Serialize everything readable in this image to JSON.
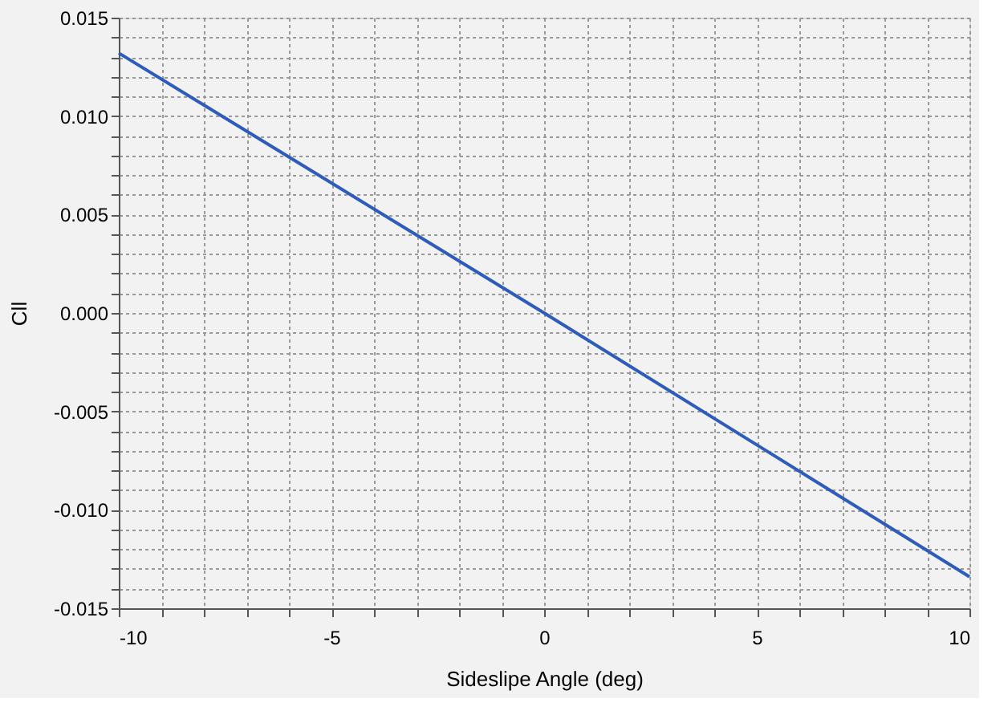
{
  "chart_data": {
    "type": "line",
    "xlabel": "Sideslipe Angle (deg)",
    "ylabel": "Cll",
    "x": [
      -10,
      -5,
      0,
      5,
      10
    ],
    "series": [
      {
        "color": "#2e5cb8",
        "values": [
          0.0132,
          0.0066,
          0.0,
          -0.0067,
          -0.0134
        ]
      }
    ],
    "xlim": [
      -10,
      10
    ],
    "ylim": [
      -0.015,
      0.015
    ],
    "xticks": [
      {
        "value": -10,
        "label": "-10"
      },
      {
        "value": -9,
        "label": null
      },
      {
        "value": -8,
        "label": null
      },
      {
        "value": -7,
        "label": null
      },
      {
        "value": -6,
        "label": null
      },
      {
        "value": -5,
        "label": "-5"
      },
      {
        "value": -4,
        "label": null
      },
      {
        "value": -3,
        "label": null
      },
      {
        "value": -2,
        "label": null
      },
      {
        "value": -1,
        "label": null
      },
      {
        "value": 0,
        "label": "0"
      },
      {
        "value": 1,
        "label": null
      },
      {
        "value": 2,
        "label": null
      },
      {
        "value": 3,
        "label": null
      },
      {
        "value": 4,
        "label": null
      },
      {
        "value": 5,
        "label": "5"
      },
      {
        "value": 6,
        "label": null
      },
      {
        "value": 7,
        "label": null
      },
      {
        "value": 8,
        "label": null
      },
      {
        "value": 9,
        "label": null
      },
      {
        "value": 10,
        "label": "10"
      }
    ],
    "yticks": [
      {
        "value": -0.015,
        "label": "-0.015"
      },
      {
        "value": -0.014,
        "label": null
      },
      {
        "value": -0.013,
        "label": null
      },
      {
        "value": -0.012,
        "label": null
      },
      {
        "value": -0.011,
        "label": null
      },
      {
        "value": -0.01,
        "label": "-0.010"
      },
      {
        "value": -0.009,
        "label": null
      },
      {
        "value": -0.008,
        "label": null
      },
      {
        "value": -0.007,
        "label": null
      },
      {
        "value": -0.006,
        "label": null
      },
      {
        "value": -0.005,
        "label": "-0.005"
      },
      {
        "value": -0.004,
        "label": null
      },
      {
        "value": -0.003,
        "label": null
      },
      {
        "value": -0.002,
        "label": null
      },
      {
        "value": -0.001,
        "label": null
      },
      {
        "value": 0,
        "label": "0.000"
      },
      {
        "value": 0.001,
        "label": null
      },
      {
        "value": 0.002,
        "label": null
      },
      {
        "value": 0.003,
        "label": null
      },
      {
        "value": 0.004,
        "label": null
      },
      {
        "value": 0.005,
        "label": "0.005"
      },
      {
        "value": 0.006,
        "label": null
      },
      {
        "value": 0.007,
        "label": null
      },
      {
        "value": 0.008,
        "label": null
      },
      {
        "value": 0.009,
        "label": null
      },
      {
        "value": 0.01,
        "label": "0.010"
      },
      {
        "value": 0.011,
        "label": null
      },
      {
        "value": 0.012,
        "label": null
      },
      {
        "value": 0.013,
        "label": null
      },
      {
        "value": 0.014,
        "label": null
      },
      {
        "value": 0.015,
        "label": "0.015"
      }
    ],
    "grid": true,
    "legend": false,
    "marker": "none",
    "line_style": "solid"
  }
}
